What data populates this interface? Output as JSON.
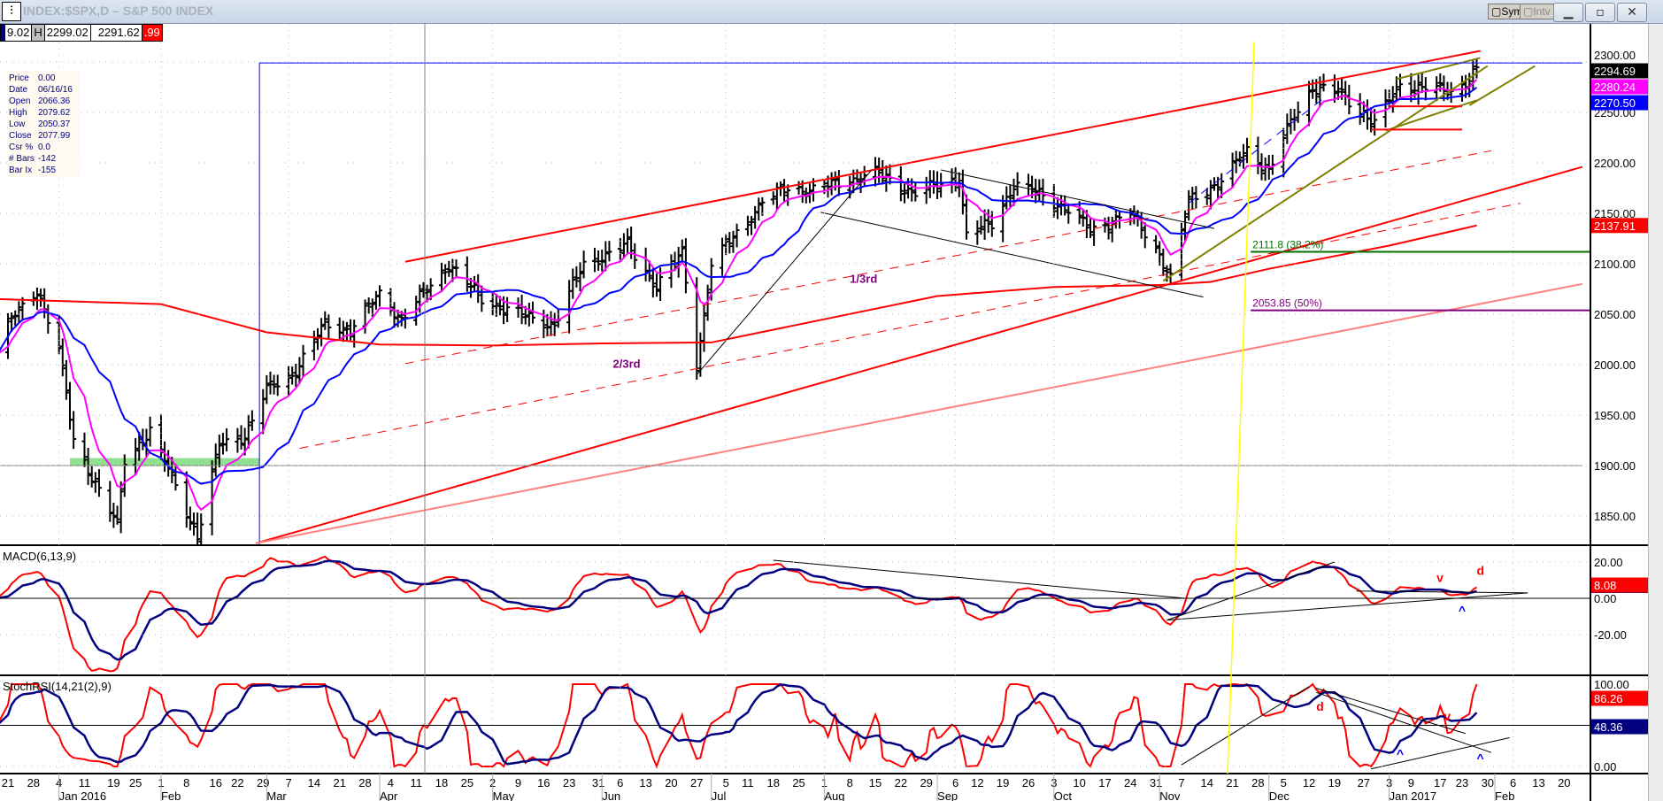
{
  "window": {
    "title": "INDEX:$SPX,D – S&P 500 INDEX",
    "app_icon": "bar-chart-icon",
    "sym_label": "Sym",
    "intv_label": "Intv",
    "minimize_icon": "minimize-icon",
    "restore_icon": "restore-icon",
    "close_icon": "close-icon"
  },
  "quote_strip": {
    "open_partial": "9.02",
    "high_label": "H",
    "high": "2299.02",
    "last": "2291.62",
    "change_partial": ".99"
  },
  "info_box": [
    {
      "k": "Price",
      "v": "0.00"
    },
    {
      "k": "Date",
      "v": "06/16/16"
    },
    {
      "k": "Open",
      "v": "2066.36"
    },
    {
      "k": "High",
      "v": "2079.62"
    },
    {
      "k": "Low",
      "v": "2050.37"
    },
    {
      "k": "Close",
      "v": "2077.99"
    },
    {
      "k": "Csr %",
      "v": "0.0"
    },
    {
      "k": "# Bars",
      "v": "-142"
    },
    {
      "k": "Bar Ix",
      "v": "-155"
    }
  ],
  "chart_data": {
    "type": "ohlc",
    "title": "INDEX:$SPX,D – S&P 500 INDEX",
    "price_axis": {
      "ticks": [
        "2300.00",
        "2250.00",
        "2200.00",
        "2150.00",
        "2100.00",
        "2050.00",
        "2000.00",
        "1950.00",
        "1900.00",
        "1850.00"
      ],
      "ylim": [
        1825,
        2320
      ]
    },
    "x_ticks": [
      {
        "d": "2015-12-21",
        "t": "21"
      },
      {
        "d": "2015-12-28",
        "t": "28"
      },
      {
        "d": "2016-01-04",
        "t": "4"
      },
      {
        "d": "2016-01-11",
        "t": "11"
      },
      {
        "d": "2016-01-19",
        "t": "19"
      },
      {
        "d": "2016-01-25",
        "t": "25"
      },
      {
        "d": "2016-02-01",
        "t": "1"
      },
      {
        "d": "2016-02-08",
        "t": "8"
      },
      {
        "d": "2016-02-16",
        "t": "16"
      },
      {
        "d": "2016-02-22",
        "t": "22"
      },
      {
        "d": "2016-02-29",
        "t": "29"
      },
      {
        "d": "2016-03-07",
        "t": "7"
      },
      {
        "d": "2016-03-14",
        "t": "14"
      },
      {
        "d": "2016-03-21",
        "t": "21"
      },
      {
        "d": "2016-03-28",
        "t": "28"
      },
      {
        "d": "2016-04-04",
        "t": "4"
      },
      {
        "d": "2016-04-11",
        "t": "11"
      },
      {
        "d": "2016-04-18",
        "t": "18"
      },
      {
        "d": "2016-04-25",
        "t": "25"
      },
      {
        "d": "2016-05-02",
        "t": "2"
      },
      {
        "d": "2016-05-09",
        "t": "9"
      },
      {
        "d": "2016-05-16",
        "t": "16"
      },
      {
        "d": "2016-05-23",
        "t": "23"
      },
      {
        "d": "2016-05-31",
        "t": "31"
      },
      {
        "d": "2016-06-06",
        "t": "6"
      },
      {
        "d": "2016-06-13",
        "t": "13"
      },
      {
        "d": "2016-06-20",
        "t": "20"
      },
      {
        "d": "2016-06-27",
        "t": "27"
      },
      {
        "d": "2016-07-05",
        "t": "5"
      },
      {
        "d": "2016-07-11",
        "t": "11"
      },
      {
        "d": "2016-07-18",
        "t": "18"
      },
      {
        "d": "2016-07-25",
        "t": "25"
      },
      {
        "d": "2016-08-01",
        "t": "1"
      },
      {
        "d": "2016-08-08",
        "t": "8"
      },
      {
        "d": "2016-08-15",
        "t": "15"
      },
      {
        "d": "2016-08-22",
        "t": "22"
      },
      {
        "d": "2016-08-29",
        "t": "29"
      },
      {
        "d": "2016-09-06",
        "t": "6"
      },
      {
        "d": "2016-09-12",
        "t": "12"
      },
      {
        "d": "2016-09-19",
        "t": "19"
      },
      {
        "d": "2016-09-26",
        "t": "26"
      },
      {
        "d": "2016-10-03",
        "t": "3"
      },
      {
        "d": "2016-10-10",
        "t": "10"
      },
      {
        "d": "2016-10-17",
        "t": "17"
      },
      {
        "d": "2016-10-24",
        "t": "24"
      },
      {
        "d": "2016-10-31",
        "t": "31"
      },
      {
        "d": "2016-11-07",
        "t": "7"
      },
      {
        "d": "2016-11-14",
        "t": "14"
      },
      {
        "d": "2016-11-21",
        "t": "21"
      },
      {
        "d": "2016-11-28",
        "t": "28"
      },
      {
        "d": "2016-12-05",
        "t": "5"
      },
      {
        "d": "2016-12-12",
        "t": "12"
      },
      {
        "d": "2016-12-19",
        "t": "19"
      },
      {
        "d": "2016-12-27",
        "t": "27"
      },
      {
        "d": "2017-01-03",
        "t": "3"
      },
      {
        "d": "2017-01-09",
        "t": "9"
      },
      {
        "d": "2017-01-17",
        "t": "17"
      },
      {
        "d": "2017-01-23",
        "t": "23"
      },
      {
        "d": "2017-01-30",
        "t": "30"
      },
      {
        "d": "2017-02-06",
        "t": "6"
      },
      {
        "d": "2017-02-13",
        "t": "13"
      },
      {
        "d": "2017-02-20",
        "t": "20"
      }
    ],
    "month_labels": [
      {
        "d": "2016-01-04",
        "t": "Jan 2016"
      },
      {
        "d": "2016-02-01",
        "t": "Feb"
      },
      {
        "d": "2016-03-01",
        "t": "Mar"
      },
      {
        "d": "2016-04-01",
        "t": "Apr"
      },
      {
        "d": "2016-05-02",
        "t": "May"
      },
      {
        "d": "2016-06-01",
        "t": "Jun"
      },
      {
        "d": "2016-07-01",
        "t": "Jul"
      },
      {
        "d": "2016-08-01",
        "t": "Aug"
      },
      {
        "d": "2016-09-01",
        "t": "Sep"
      },
      {
        "d": "2016-10-03",
        "t": "Oct"
      },
      {
        "d": "2016-11-01",
        "t": "Nov"
      },
      {
        "d": "2016-12-01",
        "t": "Dec"
      },
      {
        "d": "2017-01-03",
        "t": "Jan 2017"
      },
      {
        "d": "2017-02-01",
        "t": "Feb"
      }
    ],
    "close_path": [
      [
        "2015-12-18",
        2010
      ],
      [
        "2015-12-21",
        2040
      ],
      [
        "2015-12-29",
        2075
      ],
      [
        "2016-01-04",
        2015
      ],
      [
        "2016-01-08",
        1925
      ],
      [
        "2016-01-13",
        1890
      ],
      [
        "2016-01-20",
        1840
      ],
      [
        "2016-01-22",
        1905
      ],
      [
        "2016-01-29",
        1935
      ],
      [
        "2016-02-05",
        1880
      ],
      [
        "2016-02-11",
        1830
      ],
      [
        "2016-02-17",
        1920
      ],
      [
        "2016-02-24",
        1930
      ],
      [
        "2016-03-01",
        1975
      ],
      [
        "2016-03-08",
        1990
      ],
      [
        "2016-03-17",
        2040
      ],
      [
        "2016-03-24",
        2035
      ],
      [
        "2016-04-01",
        2070
      ],
      [
        "2016-04-07",
        2045
      ],
      [
        "2016-04-20",
        2100
      ],
      [
        "2016-04-29",
        2065
      ],
      [
        "2016-05-06",
        2055
      ],
      [
        "2016-05-13",
        2045
      ],
      [
        "2016-05-19",
        2040
      ],
      [
        "2016-05-27",
        2100
      ],
      [
        "2016-06-08",
        2118
      ],
      [
        "2016-06-16",
        2078
      ],
      [
        "2016-06-23",
        2110
      ],
      [
        "2016-06-27",
        2000
      ],
      [
        "2016-07-01",
        2100
      ],
      [
        "2016-07-08",
        2130
      ],
      [
        "2016-07-15",
        2162
      ],
      [
        "2016-07-22",
        2175
      ],
      [
        "2016-07-29",
        2173
      ],
      [
        "2016-08-05",
        2180
      ],
      [
        "2016-08-15",
        2190
      ],
      [
        "2016-08-26",
        2170
      ],
      [
        "2016-09-07",
        2185
      ],
      [
        "2016-09-09",
        2128
      ],
      [
        "2016-09-16",
        2140
      ],
      [
        "2016-09-22",
        2178
      ],
      [
        "2016-09-30",
        2168
      ],
      [
        "2016-10-07",
        2153
      ],
      [
        "2016-10-13",
        2133
      ],
      [
        "2016-10-24",
        2150
      ],
      [
        "2016-11-01",
        2110
      ],
      [
        "2016-11-04",
        2085
      ],
      [
        "2016-11-09",
        2163
      ],
      [
        "2016-11-18",
        2182
      ],
      [
        "2016-11-25",
        2213
      ],
      [
        "2016-12-01",
        2192
      ],
      [
        "2016-12-07",
        2240
      ],
      [
        "2016-12-13",
        2275
      ],
      [
        "2016-12-20",
        2270
      ],
      [
        "2016-12-30",
        2240
      ],
      [
        "2017-01-06",
        2277
      ],
      [
        "2017-01-13",
        2275
      ],
      [
        "2017-01-20",
        2270
      ],
      [
        "2017-01-24",
        2280
      ],
      [
        "2017-01-27",
        2294.69
      ]
    ],
    "ma_long": [
      [
        "2015-12-18",
        2065
      ],
      [
        "2016-02-01",
        2060
      ],
      [
        "2016-03-01",
        2032
      ],
      [
        "2016-04-01",
        2020
      ],
      [
        "2016-05-02",
        2019
      ],
      [
        "2016-06-01",
        2021
      ],
      [
        "2016-07-01",
        2022
      ],
      [
        "2016-08-01",
        2045
      ],
      [
        "2016-09-01",
        2068
      ],
      [
        "2016-10-03",
        2077
      ],
      [
        "2016-11-01",
        2079
      ],
      [
        "2016-11-15",
        2082
      ],
      [
        "2016-12-01",
        2095
      ],
      [
        "2017-01-03",
        2118
      ],
      [
        "2017-01-27",
        2137.91
      ]
    ],
    "series_last_values": {
      "close": "2294.69",
      "ma_fast": "2280.24",
      "ma_mid": "2270.50",
      "ma_long": "2137.91"
    },
    "colors": {
      "bars": "#000000",
      "ma_fast": "#ff00ff",
      "ma_mid": "#0000ff",
      "ma_long": "#ff0000",
      "fib382": "#007000",
      "fib50": "#800080",
      "cursor": "#ffff00"
    },
    "trendlines": [
      {
        "from": [
          "2016-04-08",
          2102
        ],
        "to": [
          "2017-01-28",
          2311
        ],
        "color": "#ff0000",
        "style": "solid",
        "w": 2
      },
      {
        "from": [
          "2016-04-08",
          2001
        ],
        "to": [
          "2017-01-31",
          2212
        ],
        "color": "#ff0000",
        "style": "dashed",
        "w": 1
      },
      {
        "from": [
          "2016-03-10",
          1917
        ],
        "to": [
          "2017-02-08",
          2160
        ],
        "color": "#ff0000",
        "style": "dashed",
        "w": 1
      },
      {
        "from": [
          "2016-02-27",
          1823
        ],
        "to": [
          "2017-02-25",
          2196
        ],
        "color": "#ff0000",
        "style": "solid",
        "w": 2
      },
      {
        "from": [
          "2016-02-27",
          1823
        ],
        "to": [
          "2017-02-25",
          2080
        ],
        "color": "#ff8080",
        "style": "solid",
        "w": 2
      },
      {
        "from": [
          "2016-06-27",
          1990
        ],
        "to": [
          "2016-08-14",
          2193
        ],
        "color": "#000000",
        "style": "solid",
        "w": 1
      },
      {
        "from": [
          "2016-07-31",
          2151
        ],
        "to": [
          "2016-11-13",
          2067
        ],
        "color": "#000000",
        "style": "solid",
        "w": 1
      },
      {
        "from": [
          "2016-09-02",
          2193
        ],
        "to": [
          "2016-11-16",
          2135
        ],
        "color": "#000000",
        "style": "solid",
        "w": 1
      },
      {
        "from": [
          "2016-11-02",
          2083
        ],
        "to": [
          "2017-01-30",
          2296
        ],
        "color": "#808000",
        "style": "solid",
        "w": 2
      },
      {
        "from": [
          "2017-01-02",
          2232
        ],
        "to": [
          "2017-01-27",
          2262
        ],
        "color": "#808000",
        "style": "solid",
        "w": 2
      },
      {
        "from": [
          "2017-01-05",
          2283
        ],
        "to": [
          "2017-01-28",
          2304
        ],
        "color": "#808000",
        "style": "solid",
        "w": 2
      },
      {
        "from": [
          "2017-01-25",
          2257
        ],
        "to": [
          "2017-02-12",
          2296
        ],
        "color": "#808000",
        "style": "solid",
        "w": 2
      },
      {
        "from": [
          "2016-11-09",
          2160
        ],
        "to": [
          "2016-12-16",
          2264
        ],
        "color": "#0000ff",
        "style": "dashed",
        "w": 1
      },
      {
        "from": [
          "2016-12-29",
          2233
        ],
        "to": [
          "2017-01-23",
          2233
        ],
        "color": "#ff0000",
        "style": "solid",
        "w": 2
      },
      {
        "from": [
          "2017-01-03",
          2256
        ],
        "to": [
          "2017-01-23",
          2256
        ],
        "color": "#ff0000",
        "style": "solid",
        "w": 2
      },
      {
        "from": [
          "2015-12-18",
          1900
        ],
        "to": [
          "2017-02-25",
          1900
        ],
        "color": "#808080",
        "style": "solid",
        "w": 1
      },
      {
        "from": [
          "2016-02-28",
          2299
        ],
        "to": [
          "2017-02-25",
          2299
        ],
        "color": "#0000ff",
        "style": "solid",
        "w": 1
      }
    ],
    "green_zone": {
      "from": "2016-01-07",
      "to": "2016-02-28",
      "price": 1903
    },
    "fib_levels": [
      {
        "label": "2111.8 (38.2%)",
        "price": 2111.8,
        "from": "2016-11-26",
        "color": "#007000"
      },
      {
        "label": "2053.85 (50%)",
        "price": 2053.85,
        "from": "2016-11-26",
        "color": "#800080"
      }
    ],
    "annotations": [
      {
        "text": "1/3rd",
        "d": "2016-08-08",
        "price": 2081,
        "color": "#800080"
      },
      {
        "text": "2/3rd",
        "d": "2016-06-04",
        "price": 1997,
        "color": "#800080"
      }
    ],
    "macd": {
      "label": "MACD(6,13,9)",
      "ticks": [
        "20.00",
        "0.00",
        "-20.00"
      ],
      "last_macd": "8.08",
      "annotations": [
        {
          "text": "v",
          "color": "#ff0000",
          "d": "2017-01-16",
          "v": 9
        },
        {
          "text": "d",
          "color": "#ff0000",
          "d": "2017-01-27",
          "v": 13
        },
        {
          "text": "^",
          "color": "#0000ff",
          "d": "2017-01-22",
          "v": -9
        }
      ],
      "trendlines": [
        {
          "from": [
            "2016-07-18",
            21
          ],
          "to": [
            "2016-11-08",
            0
          ]
        },
        {
          "from": [
            "2016-11-03",
            -12
          ],
          "to": [
            "2016-12-19",
            20
          ]
        },
        {
          "from": [
            "2016-11-03",
            -12
          ],
          "to": [
            "2017-02-10",
            3
          ]
        },
        {
          "from": [
            "2016-12-25",
            4
          ],
          "to": [
            "2017-02-10",
            3
          ]
        }
      ]
    },
    "stoch_rsi": {
      "label": "StochRSI(14,21(2),9)",
      "ticks": [
        "100.00",
        "0.00"
      ],
      "last_k": "86.26",
      "last_d": "48.36",
      "annotations": [
        {
          "text": "d",
          "color": "#ff0000",
          "d": "2016-12-14",
          "v": 68
        },
        {
          "text": "v",
          "color": "#ff0000",
          "d": "2017-01-18",
          "v": 56
        },
        {
          "text": "^",
          "color": "#0000ff",
          "d": "2017-01-05",
          "v": 10
        },
        {
          "text": "^",
          "color": "#0000ff",
          "d": "2017-01-27",
          "v": 5
        }
      ],
      "trendlines": [
        {
          "from": [
            "2016-11-07",
            2
          ],
          "to": [
            "2016-12-12",
            97
          ]
        },
        {
          "from": [
            "2016-12-14",
            95
          ],
          "to": [
            "2017-01-24",
            40
          ]
        },
        {
          "from": [
            "2016-12-14",
            90
          ],
          "to": [
            "2017-01-31",
            17
          ]
        },
        {
          "from": [
            "2016-12-29",
            -3
          ],
          "to": [
            "2017-02-05",
            35
          ]
        }
      ]
    }
  }
}
